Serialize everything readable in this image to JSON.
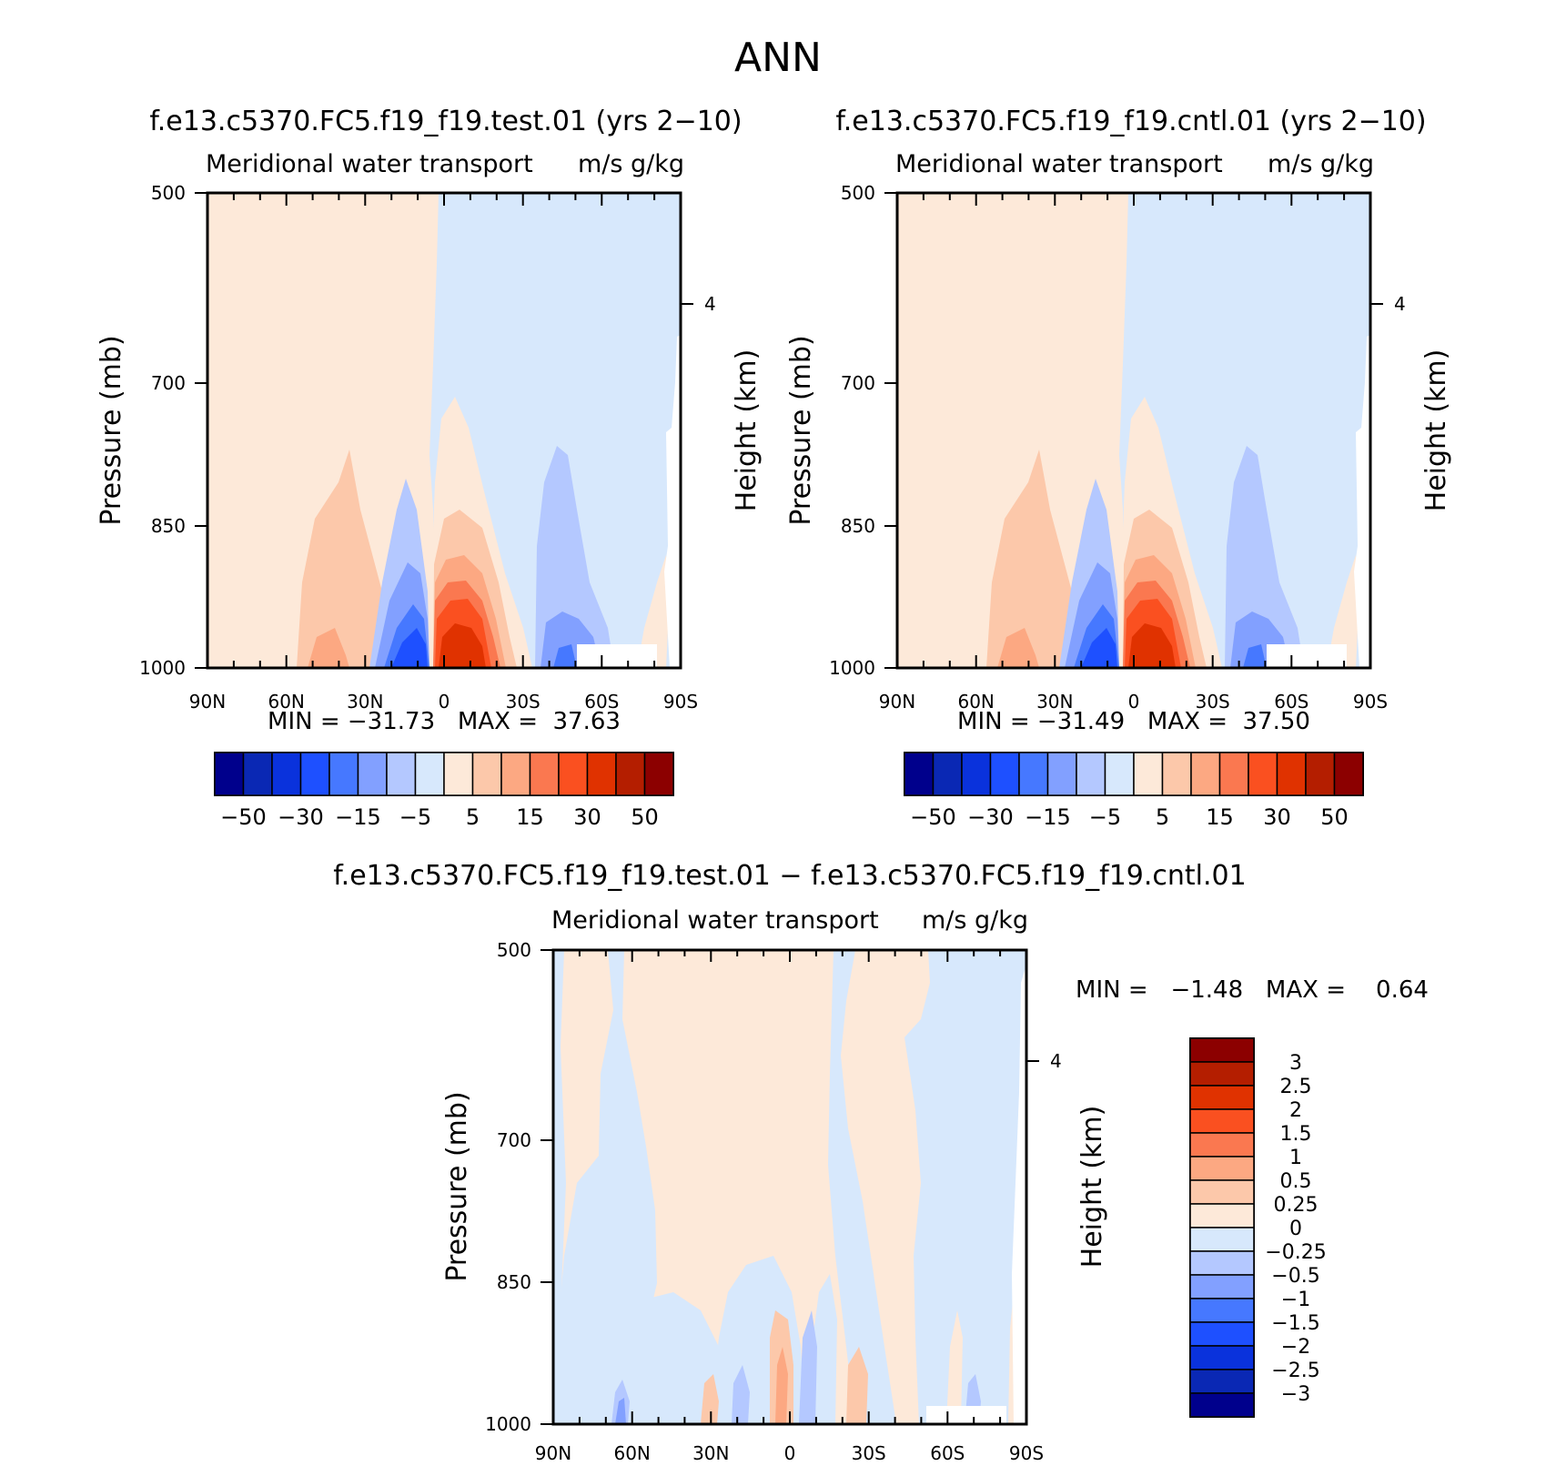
{
  "figure_title": "ANN",
  "chart_data": [
    {
      "type": "heatmap",
      "id": "test",
      "title": "f.e13.c5370.FC5.f19_f19.test.01 (yrs 2−10)",
      "subtitle_left": "Meridional water transport",
      "subtitle_right": "m/s g/kg",
      "ylabel": "Pressure (mb)",
      "ylabel_right": "Height (km)",
      "yticks": [
        "500",
        "700",
        "850",
        "1000"
      ],
      "yticks_right": [
        "4"
      ],
      "xticks": [
        "90N",
        "60N",
        "30N",
        "0",
        "30S",
        "60S",
        "90S"
      ],
      "min_max_text": "MIN = −31.73   MAX =  37.63",
      "colorbar_ticks": [
        "−50",
        "−30",
        "−15",
        "−5",
        "5",
        "15",
        "30",
        "50"
      ]
    },
    {
      "type": "heatmap",
      "id": "cntl",
      "title": "f.e13.c5370.FC5.f19_f19.cntl.01 (yrs 2−10)",
      "subtitle_left": "Meridional water transport",
      "subtitle_right": "m/s g/kg",
      "ylabel": "Pressure (mb)",
      "ylabel_right": "Height (km)",
      "yticks": [
        "500",
        "700",
        "850",
        "1000"
      ],
      "yticks_right": [
        "4"
      ],
      "xticks": [
        "90N",
        "60N",
        "30N",
        "0",
        "30S",
        "60S",
        "90S"
      ],
      "min_max_text": "MIN = −31.49   MAX =  37.50",
      "colorbar_ticks": [
        "−50",
        "−30",
        "−15",
        "−5",
        "5",
        "15",
        "30",
        "50"
      ]
    },
    {
      "type": "heatmap",
      "id": "diff",
      "title": "f.e13.c5370.FC5.f19_f19.test.01 − f.e13.c5370.FC5.f19_f19.cntl.01",
      "subtitle_left": "Meridional water transport",
      "subtitle_right": "m/s g/kg",
      "ylabel": "Pressure (mb)",
      "ylabel_right": "Height (km)",
      "yticks": [
        "500",
        "700",
        "850",
        "1000"
      ],
      "yticks_right": [
        "4"
      ],
      "xticks": [
        "90N",
        "60N",
        "30N",
        "0",
        "30S",
        "60S",
        "90S"
      ],
      "min_max_text": "MIN =   −1.48   MAX =    0.64",
      "colorbar_ticks": [
        "3",
        "2.5",
        "2",
        "1.5",
        "1",
        "0.5",
        "0.25",
        "0",
        "−0.25",
        "−0.5",
        "−1",
        "−1.5",
        "−2",
        "−2.5",
        "−3"
      ]
    }
  ],
  "palette": [
    "#00008c",
    "#0a28b4",
    "#0a32dc",
    "#1e50ff",
    "#4678ff",
    "#82a0ff",
    "#b4c8ff",
    "#d7e8fc",
    "#fde9d9",
    "#fcc8aa",
    "#fca882",
    "#fa7850",
    "#fa5020",
    "#e03200",
    "#b41e00",
    "#8c0000"
  ]
}
